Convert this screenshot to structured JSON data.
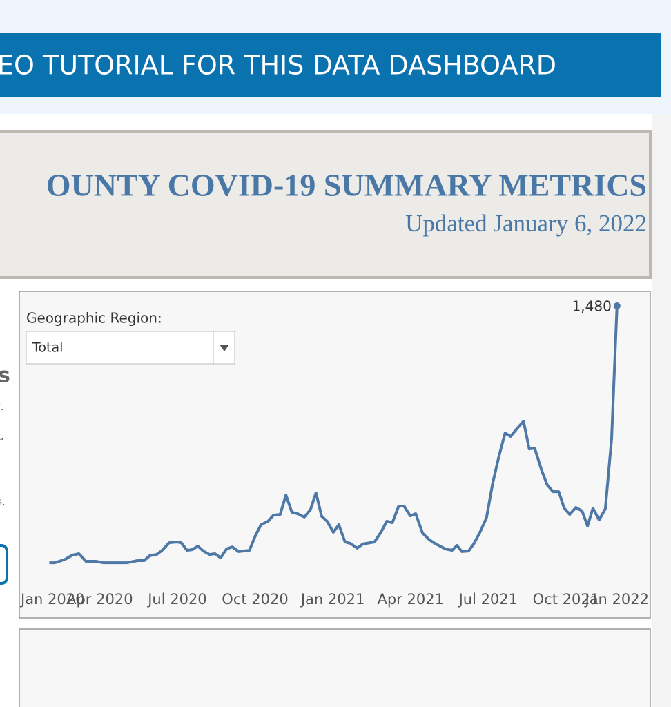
{
  "banner": {
    "text": "EO TUTORIAL FOR THIS DATA DASHBOARD"
  },
  "header": {
    "title": "OUNTY COVID-19 SUMMARY METRICS",
    "subtitle": "Updated January 6, 2022"
  },
  "left_fragments": [
    "s",
    "r.",
    "t.",
    "s."
  ],
  "filter": {
    "label": "Geographic Region:",
    "selected": "Total"
  },
  "chart_data": {
    "type": "line",
    "color": "#4e79a7",
    "x": [
      1.06,
      1.27,
      1.67,
      1.94,
      2.2,
      2.47,
      2.86,
      3.13,
      3.53,
      4.06,
      4.46,
      4.72,
      4.93,
      5.2,
      5.41,
      5.68,
      6.0,
      6.15,
      6.37,
      6.58,
      6.79,
      7.0,
      7.24,
      7.45,
      7.67,
      7.9,
      8.12,
      8.36,
      8.78,
      9.02,
      9.23,
      9.5,
      9.71,
      9.97,
      10.19,
      10.42,
      10.64,
      10.9,
      11.14,
      11.35,
      11.57,
      11.78,
      12.02,
      12.23,
      12.47,
      12.68,
      12.94,
      13.16,
      13.61,
      13.87,
      14.08,
      14.3,
      14.54,
      14.75,
      14.99,
      15.2,
      15.46,
      15.73,
      15.94,
      16.34,
      16.6,
      16.79,
      16.98,
      17.24,
      17.45,
      17.69,
      17.93,
      18.17,
      18.41,
      18.65,
      18.86,
      19.1,
      19.36,
      19.58,
      19.79,
      20.05,
      20.27,
      20.5,
      20.72,
      20.93,
      21.14,
      21.38,
      21.62,
      21.83,
      22.04,
      22.28,
      22.52,
      22.76,
      22.97
    ],
    "values": [
      57,
      57,
      76,
      99,
      107,
      65,
      65,
      57,
      57,
      57,
      69,
      69,
      96,
      103,
      126,
      168,
      172,
      168,
      126,
      130,
      149,
      122,
      103,
      107,
      84,
      134,
      145,
      119,
      126,
      210,
      268,
      287,
      321,
      325,
      432,
      337,
      329,
      310,
      352,
      444,
      314,
      287,
      226,
      268,
      172,
      164,
      138,
      161,
      172,
      229,
      287,
      279,
      371,
      371,
      317,
      329,
      222,
      184,
      164,
      134,
      126,
      153,
      119,
      122,
      164,
      229,
      306,
      497,
      646,
      776,
      757,
      799,
      841,
      688,
      692,
      574,
      489,
      451,
      451,
      359,
      325,
      363,
      344,
      260,
      359,
      294,
      356,
      746,
      1480
    ],
    "annotations": [
      {
        "text": "1,480",
        "x": 22.97,
        "y": 1480
      }
    ],
    "xlim": [
      -0.1,
      24.2
    ],
    "ylim": [
      0,
      1480
    ],
    "xticks": [
      {
        "value": 0,
        "label": "Jan 2020"
      },
      {
        "value": 3,
        "label": "Apr 2020"
      },
      {
        "value": 6,
        "label": "Jul 2020"
      },
      {
        "value": 9,
        "label": "Oct 2020"
      },
      {
        "value": 12,
        "label": "Jan 2021"
      },
      {
        "value": 15,
        "label": "Apr 2021"
      },
      {
        "value": 18,
        "label": "Jul 2021"
      },
      {
        "value": 21,
        "label": "Oct 2021"
      },
      {
        "value": 24,
        "label": "Jan 2022"
      }
    ],
    "grid": false
  }
}
